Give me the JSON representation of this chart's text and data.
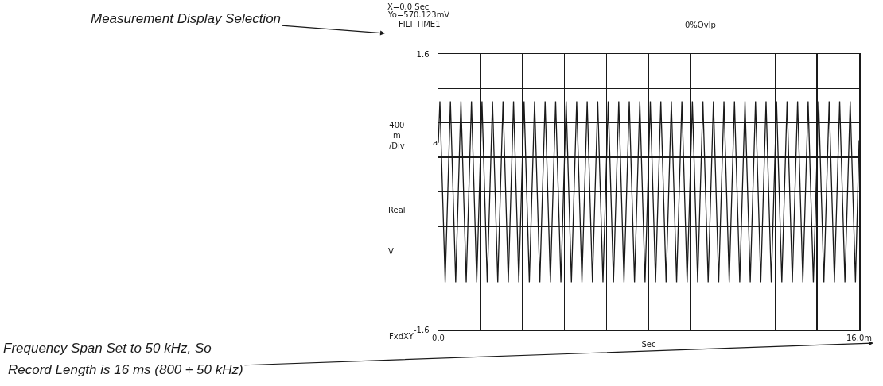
{
  "chart_data": {
    "type": "line",
    "xlabel": "Sec",
    "ylabel": "Real V",
    "x": [
      0,
      0.06,
      0.26,
      0.46,
      0.66,
      0.86,
      1.06,
      1.26,
      1.46,
      1.66,
      1.86,
      2.06,
      2.26,
      2.46,
      2.66,
      2.86,
      3.06,
      3.26,
      3.46,
      3.66,
      3.86,
      4.06,
      4.26,
      4.46,
      4.66,
      4.86,
      5.06,
      5.26,
      5.46,
      5.66,
      5.86,
      6.06,
      6.26,
      6.46,
      6.66,
      6.86,
      7.06,
      7.26,
      7.46,
      7.66,
      7.86,
      8.06,
      8.26,
      8.46,
      8.66,
      8.86,
      9.06,
      9.26,
      9.46,
      9.66,
      9.86,
      10.06,
      10.26,
      10.46,
      10.66,
      10.86,
      11.06,
      11.26,
      11.46,
      11.66,
      11.86,
      12.06,
      12.26,
      12.46,
      12.66,
      12.86,
      13.06,
      13.26,
      13.46,
      13.66,
      13.86,
      14.06,
      14.26,
      14.46,
      14.66,
      14.86,
      15.06,
      15.26,
      15.46,
      15.66,
      15.86,
      16
    ],
    "series": [
      {
        "color": "#1a1a1a",
        "values": [
          0.57,
          1.05,
          -1.05,
          1.05,
          -1.05,
          1.05,
          -1.05,
          1.05,
          -1.05,
          1.05,
          -1.05,
          1.05,
          -1.05,
          1.05,
          -1.05,
          1.05,
          -1.05,
          1.05,
          -1.05,
          1.05,
          -1.05,
          1.05,
          -1.05,
          1.05,
          -1.05,
          1.05,
          -1.05,
          1.05,
          -1.05,
          1.05,
          -1.05,
          1.05,
          -1.05,
          1.05,
          -1.05,
          1.05,
          -1.05,
          1.05,
          -1.05,
          1.05,
          -1.05,
          1.05,
          -1.05,
          1.05,
          -1.05,
          1.05,
          -1.05,
          1.05,
          -1.05,
          1.05,
          -1.05,
          1.05,
          -1.05,
          1.05,
          -1.05,
          1.05,
          -1.05,
          1.05,
          -1.05,
          1.05,
          -1.05,
          1.05,
          -1.05,
          1.05,
          -1.05,
          1.05,
          -1.05,
          1.05,
          -1.05,
          1.05,
          -1.05,
          1.05,
          -1.05,
          1.05,
          -1.05,
          1.05,
          -1.05,
          1.05,
          -1.05,
          1.05,
          -1.05,
          0.6
        ]
      }
    ],
    "xlim": [
      0,
      16
    ],
    "xticks": [
      {
        "value": 0,
        "label": "0.0"
      },
      {
        "value": 1.6,
        "label": null
      },
      {
        "value": 3.2,
        "label": null
      },
      {
        "value": 4.8,
        "label": null
      },
      {
        "value": 6.4,
        "label": null
      },
      {
        "value": 8,
        "label": null
      },
      {
        "value": 9.6,
        "label": null
      },
      {
        "value": 11.2,
        "label": null
      },
      {
        "value": 12.8,
        "label": null
      },
      {
        "value": 14.4,
        "label": null
      },
      {
        "value": 16,
        "label": "16.0m"
      }
    ],
    "ylim": [
      -1.6,
      1.6
    ],
    "yticks": [
      -1.6,
      {
        "value": -1.2,
        "label": null
      },
      {
        "value": -0.8,
        "label": null
      },
      {
        "value": -0.4,
        "label": null
      },
      {
        "value": 0,
        "label": null
      },
      {
        "value": 0.4,
        "label": null
      },
      {
        "value": 0.8,
        "label": null
      },
      {
        "value": 1.2,
        "label": null
      },
      1.6
    ],
    "grid": true,
    "marker": "none",
    "line_style": "solid",
    "annotations": [
      "X=0.0 Sec",
      "Yo=570.123mV",
      "FILT TIME1",
      "0%Ovlp",
      "400 m /Div",
      "FxdXY",
      "Measurement Display Selection",
      "Frequency Span Set to 50 kHz, So",
      "Record Length is 16 ms (800 ÷ 50 kHz)",
      {
        "text": "a",
        "x": 0,
        "y": 0.57
      }
    ]
  }
}
